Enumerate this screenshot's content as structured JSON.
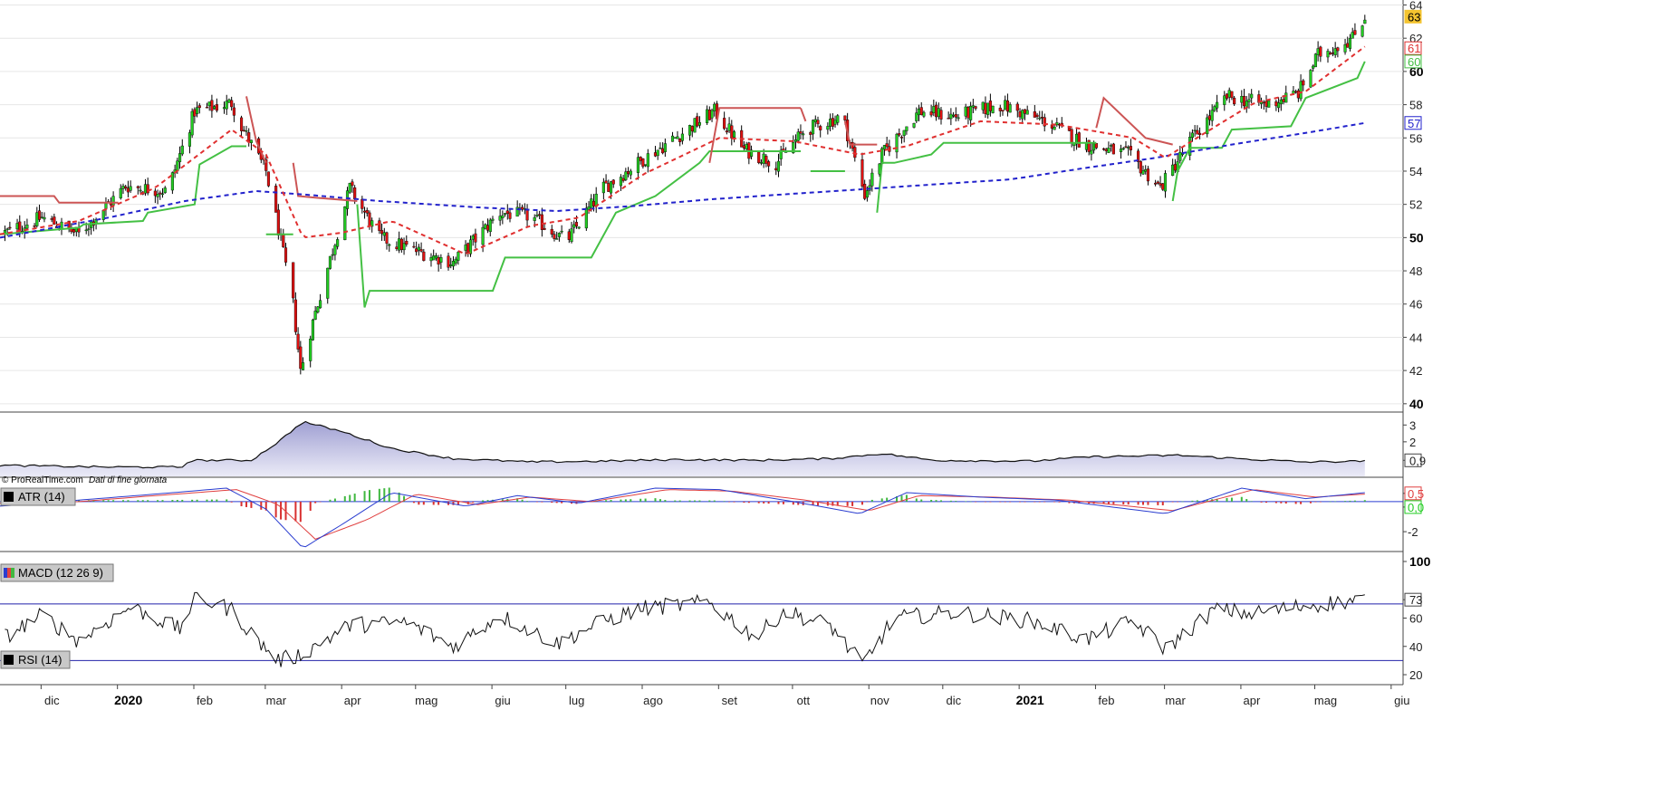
{
  "credit": {
    "source": "© ProRealTime.com",
    "note": "Dati di fine giornata"
  },
  "colors": {
    "bull": "#22cc22",
    "bear": "#dd1111",
    "ema_short": "#e03030",
    "ema_long": "#2222cc",
    "stop_up": "#44c044",
    "stop_down": "#cc5555",
    "atr_fill": "#9a9ad0",
    "macd_line": "#2a3dd0",
    "signal_line": "#e04040",
    "hist_pos": "#40b840",
    "hist_neg": "#d83030",
    "rsi_line": "#111111",
    "rsi_levels": "#2222aa",
    "price_marker_last": "#f4c430"
  },
  "panels": {
    "atr": {
      "label": "ATR (14)",
      "ticks": [
        "3",
        "2",
        "0,9"
      ]
    },
    "macd": {
      "label": "MACD (12 26 9)",
      "ticks": [
        "0,5",
        "0,0",
        "-2"
      ]
    },
    "rsi": {
      "label": "RSI (14)",
      "ticks": [
        "100",
        "73",
        "60",
        "40",
        "20"
      ]
    }
  },
  "x_axis": {
    "labels": [
      "dic",
      "2020",
      "feb",
      "mar",
      "apr",
      "mag",
      "giu",
      "lug",
      "ago",
      "set",
      "ott",
      "nov",
      "dic",
      "2021",
      "feb",
      "mar",
      "apr",
      "mag",
      "giu"
    ],
    "bold": [
      "2020",
      "2021"
    ]
  },
  "price_axis": {
    "ticks": [
      "64",
      "62",
      "60",
      "58",
      "56",
      "54",
      "52",
      "50",
      "48",
      "46",
      "44",
      "42",
      "40"
    ],
    "markers": [
      {
        "label": "63",
        "value": 63.3,
        "color": "#f4c430"
      },
      {
        "label": "61",
        "value": 61.4,
        "color": "#e03030"
      },
      {
        "label": "60",
        "value": 60.6,
        "color": "#44c044"
      },
      {
        "label": "57",
        "value": 56.9,
        "color": "#2222cc"
      }
    ]
  },
  "chart_data": {
    "type": "candlestick",
    "x_range": [
      "2019-11-18",
      "2021-06-04"
    ],
    "price_ylim": [
      39.5,
      64.3
    ],
    "price_anchors": {
      "dates": [
        "2019-11-20",
        "2019-12-05",
        "2019-12-20",
        "2020-01-08",
        "2020-01-25",
        "2020-02-05",
        "2020-02-20",
        "2020-02-24",
        "2020-03-05",
        "2020-03-10",
        "2020-03-16",
        "2020-03-19",
        "2020-03-25",
        "2020-04-08",
        "2020-04-20",
        "2020-05-05",
        "2020-05-20",
        "2020-06-08",
        "2020-06-20",
        "2020-07-05",
        "2020-07-20",
        "2020-08-05",
        "2020-08-25",
        "2020-09-03",
        "2020-09-15",
        "2020-09-28",
        "2020-10-10",
        "2020-10-25",
        "2020-11-03",
        "2020-11-10",
        "2020-11-25",
        "2020-12-10",
        "2020-12-28",
        "2021-01-15",
        "2021-02-01",
        "2021-02-18",
        "2021-03-03",
        "2021-03-15",
        "2021-03-30",
        "2021-04-15",
        "2021-04-28",
        "2021-05-06",
        "2021-05-20",
        "2021-05-25"
      ],
      "values": [
        50.3,
        51.2,
        50.2,
        53.1,
        52.8,
        57.6,
        58.1,
        56.7,
        54.0,
        50.5,
        46.0,
        42.0,
        45.5,
        53.0,
        50.0,
        49.2,
        48.5,
        51.5,
        51.3,
        49.8,
        53.0,
        54.7,
        56.7,
        57.6,
        55.3,
        54.5,
        56.5,
        57.3,
        52.6,
        55.0,
        57.6,
        57.3,
        58.0,
        57.0,
        55.6,
        55.0,
        53.0,
        55.8,
        58.5,
        58.0,
        58.7,
        61.0,
        62.0,
        63.3
      ]
    },
    "ema_short_anchors": {
      "dates": [
        "2019-11-18",
        "2019-12-20",
        "2020-01-20",
        "2020-02-20",
        "2020-03-05",
        "2020-03-20",
        "2020-04-05",
        "2020-04-25",
        "2020-05-25",
        "2020-06-20",
        "2020-07-10",
        "2020-08-05",
        "2020-09-05",
        "2020-10-05",
        "2020-11-01",
        "2020-11-20",
        "2020-12-20",
        "2021-01-20",
        "2021-02-20",
        "2021-03-05",
        "2021-03-20",
        "2021-04-10",
        "2021-05-01",
        "2021-05-25"
      ],
      "values": [
        50.2,
        51.0,
        53.0,
        56.5,
        55.0,
        50.0,
        50.3,
        51.0,
        49.0,
        50.7,
        51.2,
        53.8,
        56.0,
        55.8,
        55.0,
        55.5,
        57.0,
        56.8,
        56.0,
        54.8,
        56.2,
        58.1,
        58.8,
        61.5
      ]
    },
    "ema_long_anchors": {
      "dates": [
        "2019-11-18",
        "2020-01-01",
        "2020-02-01",
        "2020-03-01",
        "2020-03-20",
        "2020-04-20",
        "2020-06-01",
        "2020-07-01",
        "2020-08-01",
        "2020-09-01",
        "2020-10-01",
        "2020-11-01",
        "2020-12-01",
        "2021-01-01",
        "2021-02-01",
        "2021-03-01",
        "2021-04-01",
        "2021-05-01",
        "2021-05-25"
      ],
      "values": [
        50.0,
        51.2,
        52.2,
        52.8,
        52.6,
        52.2,
        51.8,
        51.6,
        51.9,
        52.3,
        52.6,
        52.9,
        53.2,
        53.5,
        54.2,
        54.8,
        55.6,
        56.3,
        56.9
      ]
    },
    "stop_up_segments": [
      {
        "dates": [
          "2019-11-18",
          "2019-12-20",
          "2019-12-22",
          "2020-01-15",
          "2020-01-17",
          "2020-02-05",
          "2020-02-07",
          "2020-02-20",
          "2020-02-26"
        ],
        "values": [
          50.2,
          50.6,
          50.8,
          51.0,
          51.5,
          52.0,
          54.4,
          55.5,
          55.5
        ]
      },
      {
        "dates": [
          "2020-03-05",
          "2020-03-16"
        ],
        "values": [
          50.2,
          50.2
        ]
      },
      {
        "dates": [
          "2020-04-11",
          "2020-04-14",
          "2020-04-16",
          "2020-06-05",
          "2020-06-10",
          "2020-07-15",
          "2020-07-25",
          "2020-08-10",
          "2020-08-28",
          "2020-09-01",
          "2020-10-08"
        ],
        "values": [
          52.0,
          45.8,
          46.8,
          46.8,
          48.8,
          48.8,
          51.5,
          52.5,
          54.5,
          55.2,
          55.2
        ]
      },
      {
        "dates": [
          "2020-10-12",
          "2020-10-26"
        ],
        "values": [
          54.0,
          54.0
        ]
      },
      {
        "dates": [
          "2020-11-08",
          "2020-11-10",
          "2020-11-15",
          "2020-11-30",
          "2020-12-05",
          "2021-02-05"
        ],
        "values": [
          51.5,
          54.5,
          54.5,
          55.0,
          55.7,
          55.7
        ]
      },
      {
        "dates": [
          "2021-03-08",
          "2021-03-10",
          "2021-03-15",
          "2021-03-28",
          "2021-04-01",
          "2021-04-25",
          "2021-05-01",
          "2021-05-22",
          "2021-05-25"
        ],
        "values": [
          52.2,
          54.0,
          55.4,
          55.4,
          56.5,
          56.7,
          58.4,
          59.6,
          60.6
        ]
      }
    ],
    "stop_down_segments": [
      {
        "dates": [
          "2019-11-18",
          "2019-12-10",
          "2019-12-12",
          "2020-01-05"
        ],
        "values": [
          52.5,
          52.5,
          52.1,
          52.1
        ]
      },
      {
        "dates": [
          "2020-02-26",
          "2020-03-01",
          "2020-03-05"
        ],
        "values": [
          58.5,
          55.8,
          54.5
        ]
      },
      {
        "dates": [
          "2020-03-16",
          "2020-03-18",
          "2020-03-25",
          "2020-04-11"
        ],
        "values": [
          54.5,
          52.5,
          52.4,
          52.2
        ]
      },
      {
        "dates": [
          "2020-09-01",
          "2020-09-05",
          "2020-10-08"
        ],
        "values": [
          54.5,
          57.8,
          57.8
        ]
      },
      {
        "dates": [
          "2020-10-08",
          "2020-10-10"
        ],
        "values": [
          57.8,
          57.0
        ]
      },
      {
        "dates": [
          "2020-10-26",
          "2020-10-28",
          "2020-11-08"
        ],
        "values": [
          57.0,
          55.6,
          55.6
        ]
      },
      {
        "dates": [
          "2021-02-05",
          "2021-02-08",
          "2021-02-25",
          "2021-03-08"
        ],
        "values": [
          56.6,
          58.4,
          56.0,
          55.6
        ]
      }
    ],
    "atr": {
      "ylim": [
        0,
        3.5
      ],
      "anchors": {
        "dates": [
          "2019-11-18",
          "2020-01-01",
          "2020-01-31",
          "2020-02-03",
          "2020-02-28",
          "2020-03-10",
          "2020-03-20",
          "2020-04-05",
          "2020-04-25",
          "2020-05-20",
          "2020-06-20",
          "2020-07-20",
          "2020-08-20",
          "2020-09-20",
          "2020-10-20",
          "2020-11-10",
          "2020-12-01",
          "2021-01-10",
          "2021-02-01",
          "2021-03-10",
          "2021-04-10",
          "2021-05-01",
          "2021-05-25"
        ],
        "values": [
          0.6,
          0.5,
          0.5,
          0.9,
          0.9,
          2.0,
          3.2,
          2.6,
          1.6,
          1.0,
          0.8,
          0.85,
          0.95,
          0.9,
          1.0,
          1.3,
          0.9,
          0.85,
          1.1,
          1.2,
          0.95,
          0.8,
          0.85
        ]
      }
    },
    "macd": {
      "ylim": [
        -3.2,
        1.2
      ],
      "line_anchors": {
        "dates": [
          "2019-11-18",
          "2019-12-20",
          "2020-01-20",
          "2020-02-18",
          "2020-03-05",
          "2020-03-20",
          "2020-04-05",
          "2020-04-25",
          "2020-05-25",
          "2020-06-15",
          "2020-07-10",
          "2020-08-10",
          "2020-09-05",
          "2020-10-05",
          "2020-11-01",
          "2020-11-20",
          "2020-12-20",
          "2021-01-20",
          "2021-03-05",
          "2021-04-05",
          "2021-05-01",
          "2021-05-25"
        ],
        "values": [
          -0.3,
          0.1,
          0.5,
          0.9,
          -0.5,
          -3.1,
          -1.5,
          0.6,
          -0.3,
          0.4,
          -0.1,
          0.9,
          0.8,
          0.0,
          -0.8,
          0.6,
          0.3,
          0.1,
          -0.8,
          0.9,
          0.2,
          0.6
        ]
      },
      "signal_anchors": {
        "dates": [
          "2019-11-18",
          "2019-12-20",
          "2020-01-20",
          "2020-02-22",
          "2020-03-10",
          "2020-03-25",
          "2020-04-15",
          "2020-05-05",
          "2020-05-30",
          "2020-06-20",
          "2020-07-15",
          "2020-08-15",
          "2020-09-10",
          "2020-10-10",
          "2020-11-05",
          "2020-11-25",
          "2020-12-25",
          "2021-01-25",
          "2021-03-08",
          "2021-04-10",
          "2021-05-05",
          "2021-05-25"
        ],
        "values": [
          -0.1,
          0.0,
          0.4,
          0.8,
          -0.2,
          -2.5,
          -1.2,
          0.5,
          -0.2,
          0.3,
          0.0,
          0.8,
          0.7,
          0.1,
          -0.6,
          0.4,
          0.3,
          0.1,
          -0.6,
          0.8,
          0.3,
          0.5
        ]
      }
    },
    "rsi": {
      "ylim": [
        0,
        100
      ],
      "levels": [
        70,
        30
      ],
      "anchors": {
        "dates": [
          "2019-11-18",
          "2019-12-05",
          "2019-12-20",
          "2020-01-10",
          "2020-01-30",
          "2020-02-05",
          "2020-02-20",
          "2020-03-01",
          "2020-03-10",
          "2020-03-19",
          "2020-04-08",
          "2020-05-01",
          "2020-05-20",
          "2020-06-08",
          "2020-07-01",
          "2020-07-20",
          "2020-08-05",
          "2020-09-01",
          "2020-09-20",
          "2020-10-01",
          "2020-10-20",
          "2020-11-02",
          "2020-11-15",
          "2020-12-10",
          "2021-01-10",
          "2021-02-01",
          "2021-02-20",
          "2021-03-05",
          "2021-03-25",
          "2021-04-10",
          "2021-05-01",
          "2021-05-25"
        ],
        "values": [
          45,
          62,
          44,
          68,
          52,
          75,
          66,
          45,
          30,
          34,
          55,
          57,
          40,
          62,
          42,
          58,
          67,
          71,
          46,
          65,
          55,
          27,
          60,
          64,
          58,
          45,
          58,
          38,
          66,
          63,
          69,
          73
        ]
      }
    }
  }
}
